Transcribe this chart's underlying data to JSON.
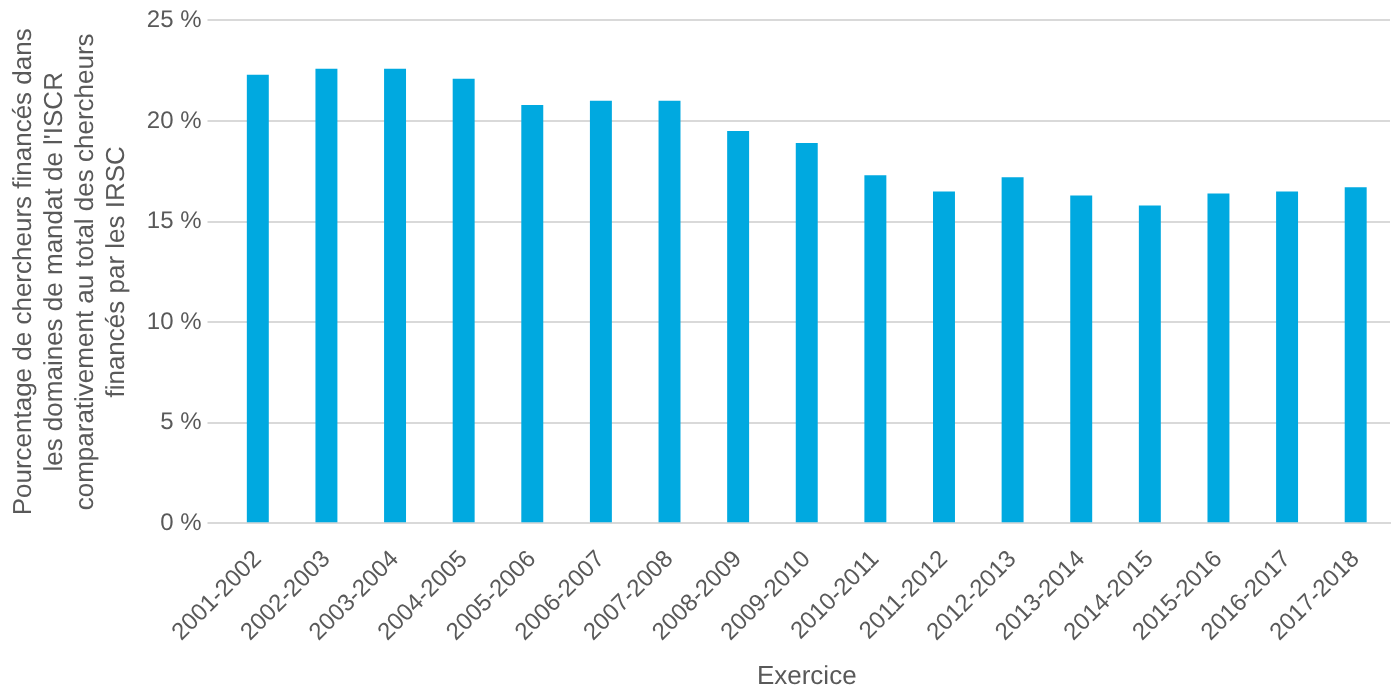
{
  "chart_data": {
    "type": "bar",
    "xlabel": "Exercice",
    "ylabel": "Pourcentage de chercheurs financés dans les domaines de mandat de l'ISCR comparativement au total des chercheurs financés par les IRSC",
    "categories": [
      "2001-2002",
      "2002-2003",
      "2003-2004",
      "2004-2005",
      "2005-2006",
      "2006-2007",
      "2007-2008",
      "2008-2009",
      "2009-2010",
      "2010-2011",
      "2011-2012",
      "2012-2013",
      "2013-2014",
      "2014-2015",
      "2015-2016",
      "2016-2017",
      "2017-2018"
    ],
    "values": [
      22.3,
      22.6,
      22.6,
      22.1,
      20.8,
      21.0,
      21.0,
      19.5,
      18.9,
      17.3,
      16.5,
      17.2,
      16.3,
      15.8,
      16.4,
      16.5,
      16.7
    ],
    "color": "#00a9e0",
    "ylim": [
      0,
      25
    ],
    "yticks": [
      {
        "value": 0,
        "label": "0 %"
      },
      {
        "value": 5,
        "label": "5 %"
      },
      {
        "value": 10,
        "label": "10 %"
      },
      {
        "value": 15,
        "label": "15 %"
      },
      {
        "value": 20,
        "label": "20 %"
      },
      {
        "value": 25,
        "label": "25 %"
      }
    ],
    "grid": "y"
  }
}
